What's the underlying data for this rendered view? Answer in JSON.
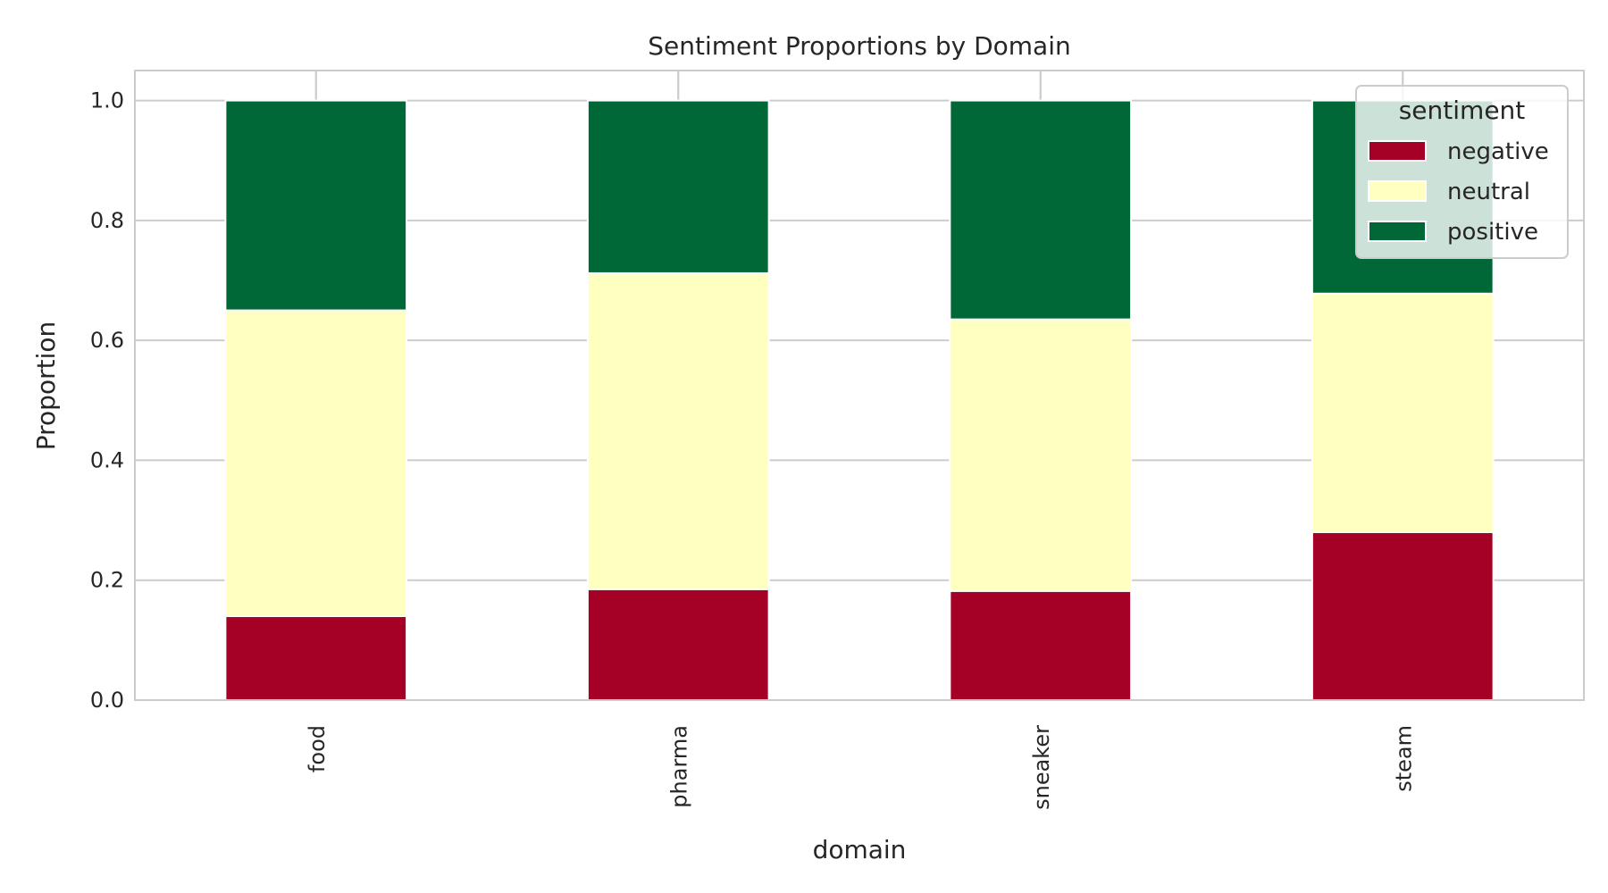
{
  "chart_data": {
    "type": "bar",
    "stacked": true,
    "title": "Sentiment Proportions by Domain",
    "xlabel": "domain",
    "ylabel": "Proportion",
    "categories": [
      "food",
      "pharma",
      "sneaker",
      "steam"
    ],
    "series": [
      {
        "name": "negative",
        "color": "#a50026",
        "values": [
          0.14,
          0.185,
          0.182,
          0.28
        ]
      },
      {
        "name": "neutral",
        "color": "#ffffbf",
        "values": [
          0.51,
          0.527,
          0.453,
          0.398
        ]
      },
      {
        "name": "positive",
        "color": "#006837",
        "values": [
          0.35,
          0.288,
          0.365,
          0.322
        ]
      }
    ],
    "ylim": [
      0,
      1.05
    ],
    "yticks": [
      "0.0",
      "0.2",
      "0.4",
      "0.6",
      "0.8",
      "1.0"
    ],
    "grid": true,
    "legend": {
      "title": "sentiment",
      "placement": "top-right"
    }
  }
}
